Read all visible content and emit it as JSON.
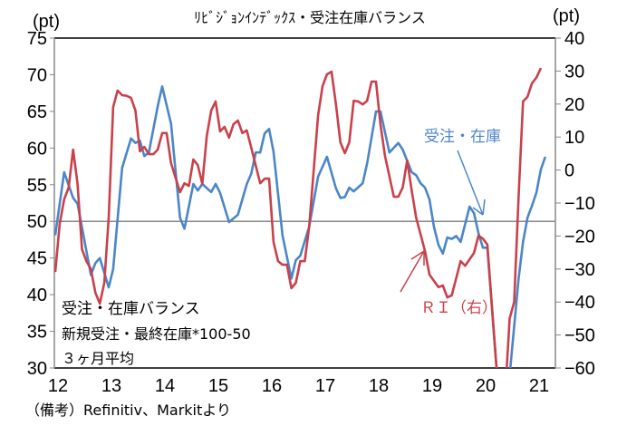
{
  "chart_data": {
    "type": "line",
    "title": "ﾘﾋﾞｼﾞｮﾝｲﾝﾃﾞｯｸｽ・受注在庫バランス",
    "y_unit_left": "(pt)",
    "y_unit_right": "(pt)",
    "ylim_left": [
      30,
      75
    ],
    "ylim_right": [
      -60,
      40
    ],
    "yticks_left": [
      "75",
      "70",
      "65",
      "60",
      "55",
      "50",
      "45",
      "40",
      "35",
      "30"
    ],
    "yticks_right": [
      "40",
      "30",
      "20",
      "10",
      "0",
      "-10",
      "-20",
      "-30",
      "-40",
      "-50",
      "-60"
    ],
    "xtick_labels": [
      "12",
      "13",
      "14",
      "15",
      "16",
      "17",
      "18",
      "19",
      "20",
      "21"
    ],
    "reference_line_left": 50,
    "grid": false,
    "series": [
      {
        "name": "受注・在庫",
        "axis": "left",
        "color": "#4a86c8",
        "points": [
          [
            "2012-01",
            48.1
          ],
          [
            "2012-03",
            56.7
          ],
          [
            "2012-05",
            53.2
          ],
          [
            "2012-06",
            52.4
          ],
          [
            "2012-09",
            42.7
          ],
          [
            "2012-10",
            44.3
          ],
          [
            "2012-11",
            45.0
          ],
          [
            "2013-01",
            41.0
          ],
          [
            "2013-02",
            43.5
          ],
          [
            "2013-04",
            57.3
          ],
          [
            "2013-06",
            61.3
          ],
          [
            "2013-07",
            60.7
          ],
          [
            "2013-08",
            61.0
          ],
          [
            "2013-09",
            58.9
          ],
          [
            "2013-10",
            59.4
          ],
          [
            "2013-12",
            65.7
          ],
          [
            "2014-01",
            68.4
          ],
          [
            "2014-03",
            63.3
          ],
          [
            "2014-05",
            50.5
          ],
          [
            "2014-06",
            49.0
          ],
          [
            "2014-08",
            55.1
          ],
          [
            "2014-09",
            54.2
          ],
          [
            "2014-10",
            55.1
          ],
          [
            "2014-12",
            54.0
          ],
          [
            "2015-01",
            55.1
          ],
          [
            "2015-02",
            53.9
          ],
          [
            "2015-04",
            49.9
          ],
          [
            "2015-06",
            50.9
          ],
          [
            "2015-08",
            55.1
          ],
          [
            "2015-09",
            56.5
          ],
          [
            "2015-10",
            59.4
          ],
          [
            "2015-11",
            59.4
          ],
          [
            "2015-12",
            62.0
          ],
          [
            "2016-01",
            62.6
          ],
          [
            "2016-02",
            59.5
          ],
          [
            "2016-04",
            48.1
          ],
          [
            "2016-06",
            42.2
          ],
          [
            "2016-07",
            44.7
          ],
          [
            "2016-08",
            45.3
          ],
          [
            "2016-10",
            49.3
          ],
          [
            "2016-12",
            56.1
          ],
          [
            "2017-02",
            58.8
          ],
          [
            "2017-04",
            54.5
          ],
          [
            "2017-05",
            53.2
          ],
          [
            "2017-06",
            53.3
          ],
          [
            "2017-07",
            54.6
          ],
          [
            "2017-08",
            54.1
          ],
          [
            "2017-10",
            55.2
          ],
          [
            "2017-11",
            57.9
          ],
          [
            "2018-01",
            65.0
          ],
          [
            "2018-02",
            65.0
          ],
          [
            "2018-04",
            59.4
          ],
          [
            "2018-06",
            60.7
          ],
          [
            "2018-07",
            59.8
          ],
          [
            "2018-09",
            56.7
          ],
          [
            "2018-10",
            56.3
          ],
          [
            "2018-11",
            55.2
          ],
          [
            "2018-12",
            54.6
          ],
          [
            "2019-01",
            53.0
          ],
          [
            "2019-02",
            49.3
          ],
          [
            "2019-03",
            46.8
          ],
          [
            "2019-04",
            45.6
          ],
          [
            "2019-05",
            47.8
          ],
          [
            "2019-06",
            47.6
          ],
          [
            "2019-07",
            48.0
          ],
          [
            "2019-08",
            47.2
          ],
          [
            "2019-10",
            52.0
          ],
          [
            "2019-11",
            51.1
          ],
          [
            "2019-12",
            48.4
          ],
          [
            "2020-01",
            46.4
          ],
          [
            "2020-02",
            46.4
          ],
          [
            "2020-04",
            30.4
          ],
          [
            "2020-05",
            24
          ],
          [
            "2020-06",
            26
          ],
          [
            "2020-07",
            29
          ],
          [
            "2020-09",
            42.2
          ],
          [
            "2020-10",
            47.2
          ],
          [
            "2020-11",
            50.5
          ],
          [
            "2020-12",
            52.1
          ],
          [
            "2021-01",
            53.9
          ],
          [
            "2021-02",
            57.1
          ],
          [
            "2021-03",
            58.8
          ]
        ]
      },
      {
        "name": "ＲＩ（右）",
        "axis": "right",
        "color": "#c8414b",
        "points": [
          [
            "2012-01",
            -30.9
          ],
          [
            "2012-02",
            -16.3
          ],
          [
            "2012-03",
            -8.9
          ],
          [
            "2012-04",
            -5.3
          ],
          [
            "2012-05",
            6.2
          ],
          [
            "2012-06",
            -4.2
          ],
          [
            "2012-07",
            -24.0
          ],
          [
            "2012-08",
            -27.6
          ],
          [
            "2012-09",
            -30.0
          ],
          [
            "2012-10",
            -37.2
          ],
          [
            "2012-11",
            -40.5
          ],
          [
            "2012-12",
            -34.2
          ],
          [
            "2013-01",
            -14.4
          ],
          [
            "2013-02",
            19.1
          ],
          [
            "2013-03",
            24.1
          ],
          [
            "2013-04",
            22.7
          ],
          [
            "2013-05",
            22.5
          ],
          [
            "2013-06",
            21.9
          ],
          [
            "2013-07",
            18.0
          ],
          [
            "2013-08",
            5.7
          ],
          [
            "2013-09",
            7.0
          ],
          [
            "2013-10",
            4.8
          ],
          [
            "2013-11",
            4.8
          ],
          [
            "2013-12",
            6.2
          ],
          [
            "2014-01",
            11.2
          ],
          [
            "2014-02",
            11.2
          ],
          [
            "2014-03",
            2.1
          ],
          [
            "2014-05",
            -6.7
          ],
          [
            "2014-06",
            -4.0
          ],
          [
            "2014-07",
            -4.8
          ],
          [
            "2014-08",
            3.2
          ],
          [
            "2014-09",
            1.5
          ],
          [
            "2014-10",
            -4.2
          ],
          [
            "2014-11",
            10.3
          ],
          [
            "2014-12",
            18.0
          ],
          [
            "2015-01",
            20.8
          ],
          [
            "2015-02",
            11.7
          ],
          [
            "2015-03",
            13.1
          ],
          [
            "2015-04",
            9.8
          ],
          [
            "2015-05",
            13.9
          ],
          [
            "2015-06",
            15.0
          ],
          [
            "2015-07",
            11.2
          ],
          [
            "2015-08",
            12.0
          ],
          [
            "2015-09",
            6.8
          ],
          [
            "2015-11",
            -4.0
          ],
          [
            "2015-12",
            -2.6
          ],
          [
            "2016-01",
            -2.6
          ],
          [
            "2016-02",
            -21.8
          ],
          [
            "2016-03",
            -27.6
          ],
          [
            "2016-04",
            -28.7
          ],
          [
            "2016-05",
            -28.7
          ],
          [
            "2016-06",
            -35.8
          ],
          [
            "2016-07",
            -34.2
          ],
          [
            "2016-08",
            -27.6
          ],
          [
            "2016-09",
            -27.6
          ],
          [
            "2016-10",
            -17.0
          ],
          [
            "2016-12",
            16.6
          ],
          [
            "2017-01",
            25.4
          ],
          [
            "2017-02",
            29.0
          ],
          [
            "2017-03",
            29.8
          ],
          [
            "2017-04",
            19.9
          ],
          [
            "2017-05",
            8.4
          ],
          [
            "2017-06",
            5.1
          ],
          [
            "2017-07",
            8.4
          ],
          [
            "2017-08",
            21.0
          ],
          [
            "2017-09",
            20.8
          ],
          [
            "2017-10",
            19.9
          ],
          [
            "2017-11",
            21.0
          ],
          [
            "2017-12",
            26.8
          ],
          [
            "2018-01",
            26.8
          ],
          [
            "2018-02",
            13.9
          ],
          [
            "2018-03",
            4.3
          ],
          [
            "2018-05",
            -8.1
          ],
          [
            "2018-06",
            -8.1
          ],
          [
            "2018-07",
            -5.3
          ],
          [
            "2018-08",
            2.9
          ],
          [
            "2018-09",
            -6.2
          ],
          [
            "2018-10",
            -14.4
          ],
          [
            "2018-12",
            -24.6
          ],
          [
            "2019-01",
            -31.7
          ],
          [
            "2019-03",
            -35.5
          ],
          [
            "2019-04",
            -35.0
          ],
          [
            "2019-05",
            -38.6
          ],
          [
            "2019-06",
            -38.0
          ],
          [
            "2019-08",
            -27.6
          ],
          [
            "2019-09",
            -29.0
          ],
          [
            "2019-11",
            -25.1
          ],
          [
            "2019-12",
            -19.9
          ],
          [
            "2020-01",
            -20.8
          ],
          [
            "2020-02",
            -22.6
          ],
          [
            "2020-04",
            -59.2
          ],
          [
            "2020-05",
            -75
          ],
          [
            "2020-06",
            -68
          ],
          [
            "2020-07",
            -45
          ],
          [
            "2020-08",
            -40
          ],
          [
            "2020-09",
            -8
          ],
          [
            "2020-10",
            20.8
          ],
          [
            "2020-11",
            22.2
          ],
          [
            "2020-12",
            26.3
          ],
          [
            "2021-01",
            28.0
          ],
          [
            "2021-02",
            30.9
          ]
        ]
      }
    ],
    "annotations": {
      "series_label_blue": "受注・在庫",
      "series_label_red": "ＲＩ（右）",
      "note_line1": "受注・在庫バランス",
      "note_line2": "新規受注・最終在庫*100-50",
      "note_line3": "３ヶ月平均"
    },
    "source": "（備考）Refinitiv、Markitより"
  }
}
